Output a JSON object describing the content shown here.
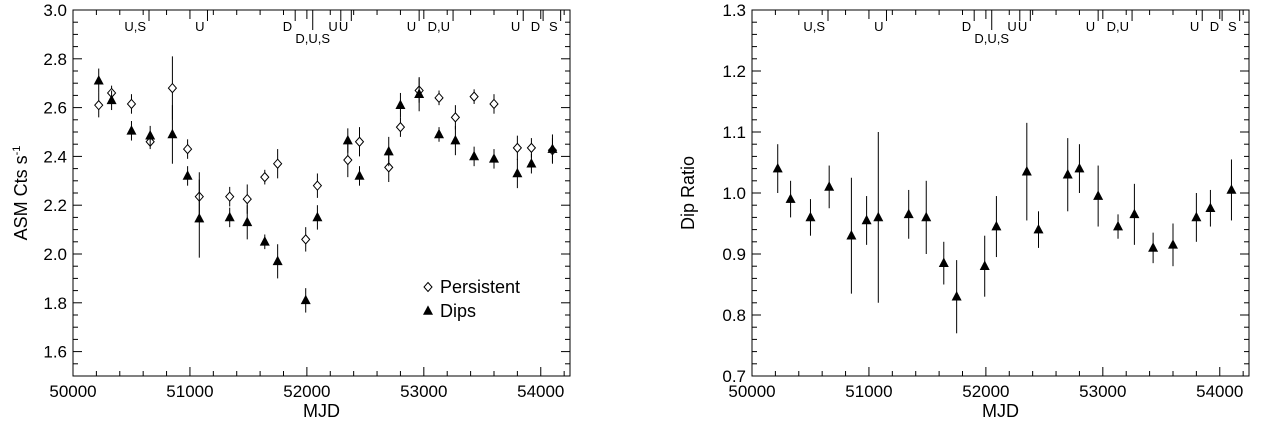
{
  "chart_data": [
    {
      "type": "scatter",
      "xlabel": "MJD",
      "ylabel": "ASM Cts s",
      "ylabel_sup": "-1",
      "xlim": [
        50000,
        54250
      ],
      "ylim": [
        1.5,
        3.0
      ],
      "xticks": [
        50000,
        51000,
        52000,
        53000,
        54000
      ],
      "yticks": [
        1.6,
        1.8,
        2.0,
        2.2,
        2.4,
        2.6,
        2.8,
        3.0
      ],
      "ytick_labels": [
        "1.6",
        "1.8",
        "2.0",
        "2.2",
        "2.4",
        "2.6",
        "2.8",
        "3.0"
      ],
      "grid": false,
      "legend_position": "bottom-right",
      "top_marks": [
        {
          "x": 50650,
          "label": "U,S",
          "row": 1
        },
        {
          "x": 51150,
          "label": "U",
          "row": 1
        },
        {
          "x": 51900,
          "label": "D",
          "row": 1
        },
        {
          "x": 52050,
          "label": "D,U,S",
          "row": 2
        },
        {
          "x": 52290,
          "label": "U",
          "row": 1
        },
        {
          "x": 52380,
          "label": "U",
          "row": 1
        },
        {
          "x": 52960,
          "label": "U",
          "row": 1
        },
        {
          "x": 53250,
          "label": "D,U",
          "row": 1
        },
        {
          "x": 53850,
          "label": "U",
          "row": 1
        },
        {
          "x": 54020,
          "label": "D",
          "row": 1
        },
        {
          "x": 54170,
          "label": "S",
          "row": 1
        }
      ],
      "series": [
        {
          "name": "Persistent",
          "marker": "diamond-open",
          "points": [
            {
              "x": 50220,
              "y": 2.61,
              "err": 0.05
            },
            {
              "x": 50330,
              "y": 2.66,
              "err": 0.03
            },
            {
              "x": 50500,
              "y": 2.615,
              "err": 0.04
            },
            {
              "x": 50660,
              "y": 2.46,
              "err": 0.03
            },
            {
              "x": 50850,
              "y": 2.68,
              "err": 0.13
            },
            {
              "x": 50980,
              "y": 2.43,
              "err": 0.04
            },
            {
              "x": 51080,
              "y": 2.235,
              "err": 0.1
            },
            {
              "x": 51340,
              "y": 2.235,
              "err": 0.04
            },
            {
              "x": 51490,
              "y": 2.225,
              "err": 0.06
            },
            {
              "x": 51640,
              "y": 2.315,
              "err": 0.03
            },
            {
              "x": 51750,
              "y": 2.37,
              "err": 0.06
            },
            {
              "x": 51990,
              "y": 2.06,
              "err": 0.05
            },
            {
              "x": 52090,
              "y": 2.28,
              "err": 0.05
            },
            {
              "x": 52350,
              "y": 2.385,
              "err": 0.07
            },
            {
              "x": 52450,
              "y": 2.46,
              "err": 0.06
            },
            {
              "x": 52700,
              "y": 2.355,
              "err": 0.06
            },
            {
              "x": 52800,
              "y": 2.52,
              "err": 0.04
            },
            {
              "x": 52960,
              "y": 2.67,
              "err": 0.05
            },
            {
              "x": 53130,
              "y": 2.64,
              "err": 0.03
            },
            {
              "x": 53270,
              "y": 2.56,
              "err": 0.05
            },
            {
              "x": 53430,
              "y": 2.645,
              "err": 0.03
            },
            {
              "x": 53600,
              "y": 2.615,
              "err": 0.04
            },
            {
              "x": 53800,
              "y": 2.435,
              "err": 0.05
            },
            {
              "x": 53920,
              "y": 2.435,
              "err": 0.04
            },
            {
              "x": 54100,
              "y": 2.425,
              "err": 0.05
            }
          ]
        },
        {
          "name": "Dips",
          "marker": "triangle-filled",
          "points": [
            {
              "x": 50220,
              "y": 2.71,
              "err": 0.05
            },
            {
              "x": 50330,
              "y": 2.63,
              "err": 0.04
            },
            {
              "x": 50500,
              "y": 2.505,
              "err": 0.04
            },
            {
              "x": 50660,
              "y": 2.485,
              "err": 0.04
            },
            {
              "x": 50850,
              "y": 2.49,
              "err": 0.12
            },
            {
              "x": 50980,
              "y": 2.32,
              "err": 0.04
            },
            {
              "x": 51080,
              "y": 2.145,
              "err": 0.16
            },
            {
              "x": 51340,
              "y": 2.15,
              "err": 0.04
            },
            {
              "x": 51490,
              "y": 2.13,
              "err": 0.07
            },
            {
              "x": 51640,
              "y": 2.05,
              "err": 0.03
            },
            {
              "x": 51750,
              "y": 1.97,
              "err": 0.07
            },
            {
              "x": 51990,
              "y": 1.81,
              "err": 0.05
            },
            {
              "x": 52090,
              "y": 2.15,
              "err": 0.05
            },
            {
              "x": 52350,
              "y": 2.465,
              "err": 0.05
            },
            {
              "x": 52450,
              "y": 2.32,
              "err": 0.04
            },
            {
              "x": 52700,
              "y": 2.42,
              "err": 0.06
            },
            {
              "x": 52800,
              "y": 2.61,
              "err": 0.05
            },
            {
              "x": 52960,
              "y": 2.655,
              "err": 0.07
            },
            {
              "x": 53130,
              "y": 2.49,
              "err": 0.03
            },
            {
              "x": 53270,
              "y": 2.465,
              "err": 0.06
            },
            {
              "x": 53430,
              "y": 2.4,
              "err": 0.04
            },
            {
              "x": 53600,
              "y": 2.39,
              "err": 0.04
            },
            {
              "x": 53800,
              "y": 2.33,
              "err": 0.06
            },
            {
              "x": 53920,
              "y": 2.37,
              "err": 0.04
            },
            {
              "x": 54100,
              "y": 2.43,
              "err": 0.06
            }
          ]
        }
      ]
    },
    {
      "type": "scatter",
      "xlabel": "MJD",
      "ylabel": "Dip Ratio",
      "xlim": [
        50000,
        54250
      ],
      "ylim": [
        0.7,
        1.3
      ],
      "xticks": [
        50000,
        51000,
        52000,
        53000,
        54000
      ],
      "yticks": [
        0.7,
        0.8,
        0.9,
        1.0,
        1.1,
        1.2,
        1.3
      ],
      "ytick_labels": [
        "0.7",
        "0.8",
        "0.9",
        "1.0",
        "1.1",
        "1.2",
        "1.3"
      ],
      "grid": false,
      "top_marks": [
        {
          "x": 50650,
          "label": "U,S",
          "row": 1
        },
        {
          "x": 51150,
          "label": "U",
          "row": 1
        },
        {
          "x": 51900,
          "label": "D",
          "row": 1
        },
        {
          "x": 52050,
          "label": "D,U,S",
          "row": 2
        },
        {
          "x": 52290,
          "label": "U",
          "row": 1
        },
        {
          "x": 52380,
          "label": "U",
          "row": 1
        },
        {
          "x": 52960,
          "label": "U",
          "row": 1
        },
        {
          "x": 53250,
          "label": "D,U",
          "row": 1
        },
        {
          "x": 53850,
          "label": "U",
          "row": 1
        },
        {
          "x": 54020,
          "label": "D",
          "row": 1
        },
        {
          "x": 54170,
          "label": "S",
          "row": 1
        }
      ],
      "series": [
        {
          "marker": "triangle-filled",
          "points": [
            {
              "x": 50220,
              "y": 1.04,
              "err": 0.04
            },
            {
              "x": 50330,
              "y": 0.99,
              "err": 0.03
            },
            {
              "x": 50500,
              "y": 0.96,
              "err": 0.03
            },
            {
              "x": 50660,
              "y": 1.01,
              "err": 0.035
            },
            {
              "x": 50850,
              "y": 0.93,
              "err": 0.095
            },
            {
              "x": 50980,
              "y": 0.955,
              "err": 0.04
            },
            {
              "x": 51080,
              "y": 0.96,
              "err": 0.14
            },
            {
              "x": 51340,
              "y": 0.965,
              "err": 0.04
            },
            {
              "x": 51490,
              "y": 0.96,
              "err": 0.06
            },
            {
              "x": 51640,
              "y": 0.885,
              "err": 0.035
            },
            {
              "x": 51750,
              "y": 0.83,
              "err": 0.06
            },
            {
              "x": 51990,
              "y": 0.88,
              "err": 0.05
            },
            {
              "x": 52090,
              "y": 0.945,
              "err": 0.05
            },
            {
              "x": 52350,
              "y": 1.035,
              "err": 0.08
            },
            {
              "x": 52450,
              "y": 0.94,
              "err": 0.03
            },
            {
              "x": 52700,
              "y": 1.03,
              "err": 0.06
            },
            {
              "x": 52800,
              "y": 1.04,
              "err": 0.04
            },
            {
              "x": 52960,
              "y": 0.995,
              "err": 0.05
            },
            {
              "x": 53130,
              "y": 0.945,
              "err": 0.02
            },
            {
              "x": 53270,
              "y": 0.965,
              "err": 0.05
            },
            {
              "x": 53430,
              "y": 0.91,
              "err": 0.025
            },
            {
              "x": 53600,
              "y": 0.915,
              "err": 0.035
            },
            {
              "x": 53800,
              "y": 0.96,
              "err": 0.04
            },
            {
              "x": 53920,
              "y": 0.975,
              "err": 0.03
            },
            {
              "x": 54100,
              "y": 1.005,
              "err": 0.05
            }
          ]
        }
      ]
    }
  ]
}
